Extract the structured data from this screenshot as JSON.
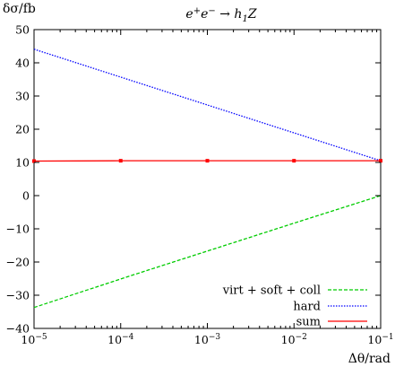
{
  "chart_data": {
    "type": "line",
    "title_parts": [
      "e",
      "+",
      "e",
      "−",
      " → h",
      "1",
      "Z"
    ],
    "ylabel": "δσ/fb",
    "xlabel": "Δθ/rad",
    "x_scale": "log",
    "xlim": [
      1e-05,
      0.1
    ],
    "ylim": [
      -40,
      50
    ],
    "x_ticks": [
      1e-05,
      0.0001,
      0.001,
      0.01,
      0.1
    ],
    "x_tick_labels": [
      {
        "base": "10",
        "exp": "−5"
      },
      {
        "base": "10",
        "exp": "−4"
      },
      {
        "base": "10",
        "exp": "−3"
      },
      {
        "base": "10",
        "exp": "−2"
      },
      {
        "base": "10",
        "exp": "−1"
      }
    ],
    "y_ticks": [
      -40,
      -30,
      -20,
      -10,
      0,
      10,
      20,
      30,
      40,
      50
    ],
    "y_tick_labels": [
      "−40",
      "−30",
      "−20",
      "−10",
      "0",
      "10",
      "20",
      "30",
      "40",
      "50"
    ],
    "grid": false,
    "legend_position": "bottom-right",
    "series": [
      {
        "name": "virt + soft + coll",
        "color": "#00cc00",
        "dash": "dashed",
        "x": [
          1e-05,
          0.0001,
          0.001,
          0.01,
          0.1
        ],
        "y": [
          -33.7,
          -25.1,
          -16.7,
          -8.3,
          0.0
        ]
      },
      {
        "name": "hard",
        "color": "#0000ff",
        "dash": "dotted",
        "x": [
          1e-05,
          0.0001,
          0.001,
          0.01,
          0.1
        ],
        "y": [
          44.1,
          35.7,
          27.3,
          18.9,
          10.5
        ]
      },
      {
        "name": "sum",
        "color": "#ff0000",
        "dash": "solid",
        "markers": true,
        "x": [
          1e-05,
          0.0001,
          0.001,
          0.01,
          0.1
        ],
        "y": [
          10.4,
          10.5,
          10.5,
          10.5,
          10.5
        ]
      }
    ]
  }
}
